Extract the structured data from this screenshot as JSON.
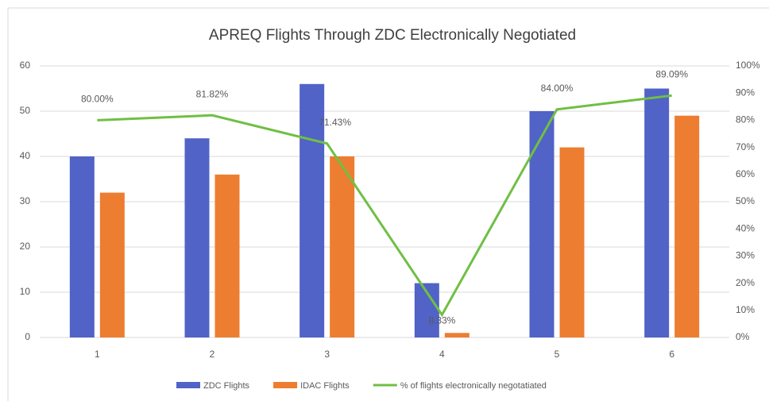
{
  "chart_data": {
    "type": "bar",
    "title": "APREQ Flights Through ZDC Electronically Negotiated",
    "categories": [
      "1",
      "2",
      "3",
      "4",
      "5",
      "6"
    ],
    "series": [
      {
        "name": "ZDC Flights",
        "color": "#5163c6",
        "values": [
          40,
          44,
          56,
          12,
          50,
          55
        ]
      },
      {
        "name": "IDAC Flights",
        "color": "#ed7d31",
        "values": [
          32,
          36,
          40,
          1,
          42,
          49
        ]
      },
      {
        "name": "% of flights electronically negotatiated",
        "type": "line",
        "axis": "y2",
        "color": "#70bf44",
        "values": [
          80,
          81.82,
          71.43,
          8.33,
          84,
          89.09
        ],
        "value_labels": [
          "80.00%",
          "81.82%",
          "71.43%",
          "8.33%",
          "84.00%",
          "89.09%"
        ]
      }
    ],
    "ylim": [
      0,
      60
    ],
    "yticks": [
      0,
      10,
      20,
      30,
      40,
      50,
      60
    ],
    "y2lim": [
      0,
      100
    ],
    "y2ticks": [
      {
        "value": 0,
        "label": "0%"
      },
      {
        "value": 10,
        "label": "10%"
      },
      {
        "value": 20,
        "label": "20%"
      },
      {
        "value": 30,
        "label": "30%"
      },
      {
        "value": 40,
        "label": "40%"
      },
      {
        "value": 50,
        "label": "50%"
      },
      {
        "value": 60,
        "label": "60%"
      },
      {
        "value": 70,
        "label": "70%"
      },
      {
        "value": 80,
        "label": "80%"
      },
      {
        "value": 90,
        "label": "90%"
      },
      {
        "value": 100,
        "label": "100%"
      }
    ],
    "grid": true,
    "legend": "bottom"
  }
}
